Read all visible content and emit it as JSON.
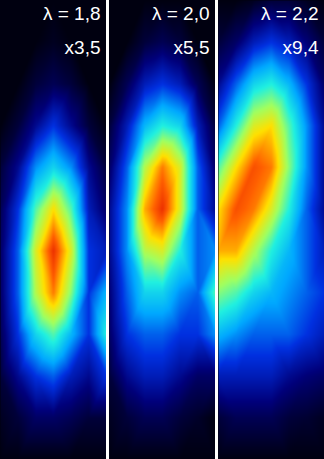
{
  "chart_data": [
    {
      "type": "heatmap",
      "title": "λ = 1,8",
      "subtitle": "x3,5",
      "tick_labels": false,
      "zlim": [
        0,
        1
      ],
      "cells": [
        [
          0,
          0,
          0,
          0,
          0,
          0,
          0
        ],
        [
          0,
          0,
          0,
          0.02,
          0,
          0,
          0
        ],
        [
          0,
          0,
          0.05,
          0.08,
          0.05,
          0,
          0
        ],
        [
          0,
          0.05,
          0.15,
          0.25,
          0.15,
          0.05,
          0
        ],
        [
          0.05,
          0.15,
          0.35,
          0.45,
          0.35,
          0.15,
          0.05
        ],
        [
          0.08,
          0.25,
          0.55,
          0.75,
          0.55,
          0.2,
          0.1
        ],
        [
          0.1,
          0.3,
          0.7,
          0.95,
          0.7,
          0.25,
          0.2
        ],
        [
          0.1,
          0.3,
          0.65,
          0.85,
          0.6,
          0.25,
          0.4
        ],
        [
          0.08,
          0.25,
          0.45,
          0.55,
          0.4,
          0.25,
          0.5
        ],
        [
          0.05,
          0.15,
          0.25,
          0.3,
          0.2,
          0.15,
          0.25
        ],
        [
          0.02,
          0.05,
          0.1,
          0.1,
          0.08,
          0.05,
          0.05
        ],
        [
          0,
          0,
          0,
          0,
          0,
          0,
          0
        ]
      ]
    },
    {
      "type": "heatmap",
      "title": "λ = 2,0",
      "subtitle": "x5,5",
      "tick_labels": false,
      "zlim": [
        0,
        1
      ],
      "cells": [
        [
          0,
          0,
          0,
          0,
          0,
          0,
          0
        ],
        [
          0,
          0,
          0.05,
          0.08,
          0.05,
          0,
          0
        ],
        [
          0,
          0.08,
          0.2,
          0.25,
          0.2,
          0.08,
          0
        ],
        [
          0.05,
          0.2,
          0.4,
          0.5,
          0.45,
          0.2,
          0.05
        ],
        [
          0.1,
          0.3,
          0.65,
          0.85,
          0.7,
          0.3,
          0.1
        ],
        [
          0.15,
          0.35,
          0.8,
          0.95,
          0.7,
          0.3,
          0.15
        ],
        [
          0.15,
          0.35,
          0.65,
          0.7,
          0.5,
          0.3,
          0.35
        ],
        [
          0.12,
          0.3,
          0.45,
          0.45,
          0.35,
          0.3,
          0.55
        ],
        [
          0.1,
          0.25,
          0.3,
          0.3,
          0.25,
          0.25,
          0.35
        ],
        [
          0.05,
          0.15,
          0.2,
          0.2,
          0.15,
          0.1,
          0.1
        ],
        [
          0.02,
          0.05,
          0.08,
          0.08,
          0.05,
          0.03,
          0
        ],
        [
          0,
          0,
          0,
          0,
          0,
          0,
          0
        ]
      ]
    },
    {
      "type": "heatmap",
      "title": "λ = 2,2",
      "subtitle": "x9,4",
      "tick_labels": false,
      "zlim": [
        0,
        1
      ],
      "cells": [
        [
          0,
          0,
          0.02,
          0.05,
          0.05,
          0.02,
          0
        ],
        [
          0.05,
          0.1,
          0.2,
          0.25,
          0.2,
          0.12,
          0.05
        ],
        [
          0.15,
          0.3,
          0.45,
          0.5,
          0.4,
          0.25,
          0.1
        ],
        [
          0.3,
          0.5,
          0.7,
          0.75,
          0.55,
          0.35,
          0.15
        ],
        [
          0.55,
          0.75,
          0.9,
          0.85,
          0.6,
          0.35,
          0.15
        ],
        [
          0.75,
          0.9,
          0.85,
          0.7,
          0.5,
          0.3,
          0.15
        ],
        [
          0.8,
          0.8,
          0.65,
          0.5,
          0.4,
          0.3,
          0.2
        ],
        [
          0.6,
          0.55,
          0.45,
          0.4,
          0.35,
          0.3,
          0.25
        ],
        [
          0.4,
          0.35,
          0.3,
          0.3,
          0.3,
          0.25,
          0.2
        ],
        [
          0.2,
          0.2,
          0.2,
          0.2,
          0.15,
          0.12,
          0.1
        ],
        [
          0.05,
          0.08,
          0.08,
          0.08,
          0.05,
          0.04,
          0.02
        ],
        [
          0,
          0,
          0,
          0,
          0,
          0,
          0
        ]
      ]
    }
  ]
}
